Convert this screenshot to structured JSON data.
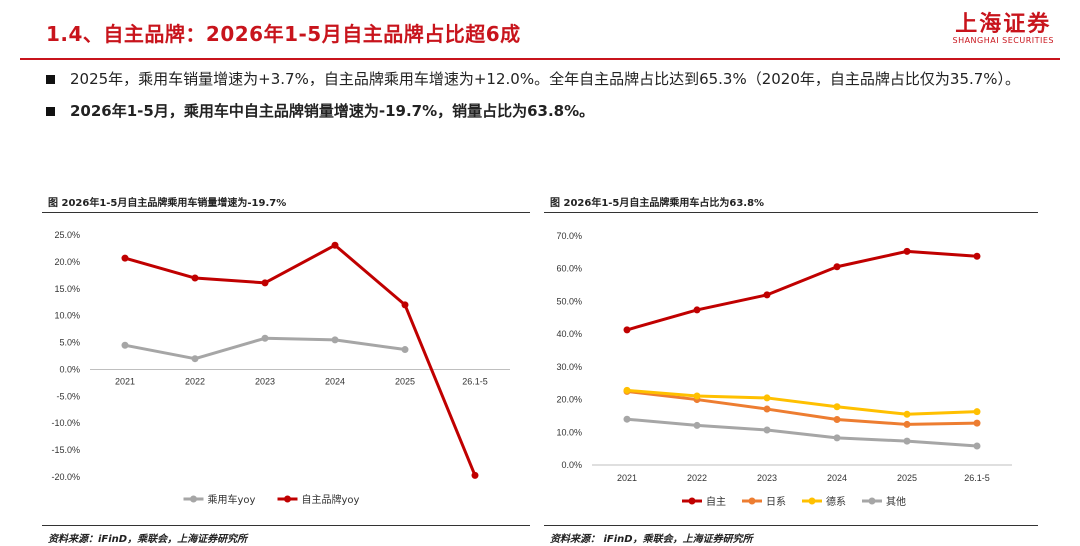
{
  "header": {
    "title": "1.4、自主品牌：2026年1-5月自主品牌占比超6成",
    "logo_cn": "上海证券",
    "logo_en": "SHANGHAI SECURITIES"
  },
  "bullets": [
    "2025年，乘用车销量增速为+3.7%，自主品牌乘用车增速为+12.0%。全年自主品牌占比达到65.3%（2020年，自主品牌占比仅为35.7%）。",
    "2026年1-5月，乘用车中自主品牌销量增速为-19.7%，销量占比为63.8%。"
  ],
  "charts": {
    "left": {
      "panel_title": "图  2026年1-5月自主品牌乘用车销量增速为-19.7%",
      "source": "资料来源：iFinD，乘联会，上海证券研究所"
    },
    "right": {
      "panel_title": "图  2026年1-5月自主品牌乘用车占比为63.8%",
      "source": "资料来源： iFinD，乘联会，上海证券研究所"
    }
  },
  "chart_data": [
    {
      "type": "line",
      "title": "2026年1-5月自主品牌乘用车销量增速为-19.7%",
      "categories": [
        "2021",
        "2022",
        "2023",
        "2024",
        "2025",
        "26.1-5"
      ],
      "ylim": [
        -0.2,
        0.25
      ],
      "ytick_step": 0.05,
      "y_format": "percent1",
      "legend_position": "bottom",
      "grid": false,
      "series": [
        {
          "name": "乘用车yoy",
          "color": "#a6a6a6",
          "values": [
            0.045,
            0.02,
            0.058,
            0.055,
            0.037,
            null
          ]
        },
        {
          "name": "自主品牌yoy",
          "color": "#c00000",
          "values": [
            0.207,
            0.17,
            0.161,
            0.231,
            0.12,
            -0.197
          ]
        }
      ]
    },
    {
      "type": "line",
      "title": "2026年1-5月自主品牌乘用车占比为63.8%",
      "categories": [
        "2021",
        "2022",
        "2023",
        "2024",
        "2025",
        "26.1-5"
      ],
      "ylim": [
        0.0,
        0.7
      ],
      "ytick_step": 0.1,
      "y_format": "percent1",
      "legend_position": "bottom",
      "grid": false,
      "series": [
        {
          "name": "自主",
          "color": "#c00000",
          "values": [
            0.413,
            0.474,
            0.52,
            0.606,
            0.653,
            0.638
          ]
        },
        {
          "name": "日系",
          "color": "#ed7d31",
          "values": [
            0.225,
            0.2,
            0.171,
            0.139,
            0.124,
            0.128
          ]
        },
        {
          "name": "德系",
          "color": "#ffc000",
          "values": [
            0.228,
            0.211,
            0.205,
            0.178,
            0.155,
            0.163
          ]
        },
        {
          "name": "其他",
          "color": "#a6a6a6",
          "values": [
            0.14,
            0.121,
            0.107,
            0.083,
            0.073,
            0.058
          ]
        }
      ]
    }
  ]
}
